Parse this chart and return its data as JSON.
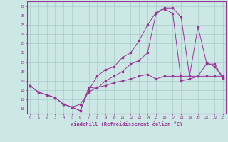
{
  "bg_color": "#cce8e4",
  "grid_color": "#aacccc",
  "line_color": "#993399",
  "xlabel": "Windchill (Refroidissement éolien,°C)",
  "xticks": [
    0,
    1,
    2,
    3,
    4,
    5,
    6,
    7,
    8,
    9,
    10,
    11,
    12,
    13,
    14,
    15,
    16,
    17,
    18,
    19,
    20,
    21,
    22,
    23
  ],
  "yticks": [
    16,
    17,
    18,
    19,
    20,
    21,
    22,
    23,
    24,
    25,
    26,
    27
  ],
  "xlim": [
    -0.3,
    23.3
  ],
  "ylim": [
    15.5,
    27.5
  ],
  "line1_x": [
    0,
    1,
    2,
    3,
    4,
    5,
    6,
    7,
    8,
    9,
    10,
    11,
    12,
    13,
    14,
    15,
    16,
    17,
    18,
    19,
    20,
    21,
    22,
    23
  ],
  "line1_y": [
    18.5,
    17.8,
    17.5,
    17.2,
    16.5,
    16.2,
    15.8,
    18.3,
    18.2,
    19.0,
    19.5,
    20.0,
    20.8,
    21.2,
    22.0,
    26.2,
    26.7,
    26.2,
    19.0,
    19.2,
    19.5,
    20.8,
    20.8,
    19.3
  ],
  "line2_x": [
    0,
    1,
    2,
    3,
    4,
    5,
    6,
    7,
    8,
    9,
    10,
    11,
    12,
    13,
    14,
    15,
    16,
    17,
    18,
    19,
    20,
    21,
    22,
    23
  ],
  "line2_y": [
    18.5,
    17.8,
    17.5,
    17.2,
    16.5,
    16.2,
    15.8,
    18.0,
    19.5,
    20.2,
    20.5,
    21.5,
    22.0,
    23.3,
    25.0,
    26.3,
    26.8,
    26.8,
    25.8,
    19.5,
    24.8,
    21.0,
    20.5,
    19.3
  ],
  "line3_x": [
    0,
    1,
    2,
    3,
    4,
    5,
    6,
    7,
    8,
    9,
    10,
    11,
    12,
    13,
    14,
    15,
    16,
    17,
    18,
    19,
    20,
    21,
    22,
    23
  ],
  "line3_y": [
    18.5,
    17.8,
    17.5,
    17.2,
    16.5,
    16.2,
    16.5,
    17.8,
    18.3,
    18.5,
    18.8,
    19.0,
    19.2,
    19.5,
    19.7,
    19.2,
    19.5,
    19.5,
    19.5,
    19.5,
    19.5,
    19.5,
    19.5,
    19.5
  ]
}
